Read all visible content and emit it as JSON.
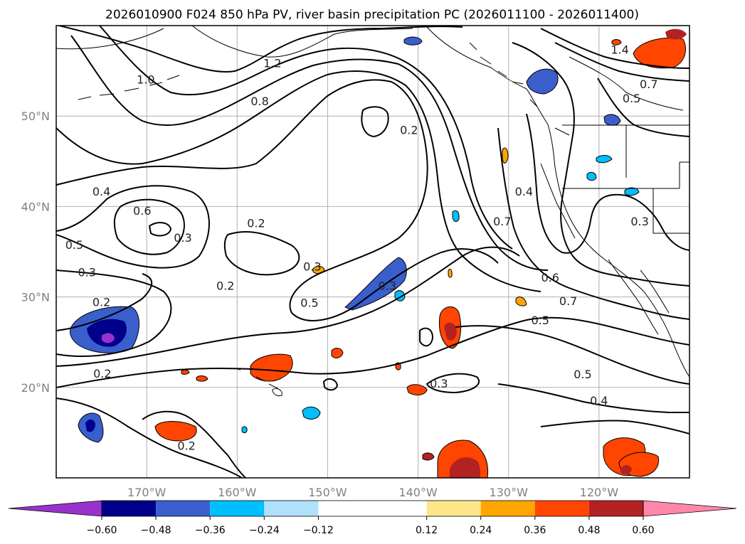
{
  "title": "2026010900 F024 850 hPa PV, river basin precipitation PC (2026011100 - 2026011400)",
  "map": {
    "lon_range": [
      -180,
      -110
    ],
    "lat_range": [
      10,
      60
    ],
    "lon_ticks": [
      {
        "value": -170,
        "label": "170°W"
      },
      {
        "value": -160,
        "label": "160°W"
      },
      {
        "value": -150,
        "label": "150°W"
      },
      {
        "value": -140,
        "label": "140°W"
      },
      {
        "value": -130,
        "label": "130°W"
      },
      {
        "value": -120,
        "label": "120°W"
      }
    ],
    "lat_ticks": [
      {
        "value": 20,
        "label": "20°N"
      },
      {
        "value": 30,
        "label": "30°N"
      },
      {
        "value": 40,
        "label": "40°N"
      },
      {
        "value": 50,
        "label": "50°N"
      }
    ],
    "contour_labels": [
      {
        "text": "1.4",
        "lon": -117.7,
        "lat": 56.9
      },
      {
        "text": "1.2",
        "lon": -156.1,
        "lat": 55.4
      },
      {
        "text": "1.0",
        "lon": -170.1,
        "lat": 53.6
      },
      {
        "text": "0.8",
        "lon": -157.5,
        "lat": 51.2
      },
      {
        "text": "0.7",
        "lon": -114.5,
        "lat": 53.1
      },
      {
        "text": "0.5",
        "lon": -116.4,
        "lat": 51.5
      },
      {
        "text": "0.2",
        "lon": -141.0,
        "lat": 48.0
      },
      {
        "text": "0.4",
        "lon": -175.0,
        "lat": 41.2
      },
      {
        "text": "0.6",
        "lon": -170.5,
        "lat": 39.1
      },
      {
        "text": "0.5",
        "lon": -178.0,
        "lat": 35.3
      },
      {
        "text": "0.3",
        "lon": -166.0,
        "lat": 36.1
      },
      {
        "text": "0.2",
        "lon": -157.9,
        "lat": 37.7
      },
      {
        "text": "0.4",
        "lon": -128.3,
        "lat": 41.2
      },
      {
        "text": "0.7",
        "lon": -130.7,
        "lat": 37.9
      },
      {
        "text": "0.3",
        "lon": -115.5,
        "lat": 37.9
      },
      {
        "text": "0.3",
        "lon": -176.6,
        "lat": 32.3
      },
      {
        "text": "0.2",
        "lon": -175.0,
        "lat": 29.0
      },
      {
        "text": "0.3",
        "lon": -151.7,
        "lat": 32.9
      },
      {
        "text": "0.2",
        "lon": -161.3,
        "lat": 30.8
      },
      {
        "text": "0.5",
        "lon": -152.0,
        "lat": 28.9
      },
      {
        "text": "0.3",
        "lon": -143.4,
        "lat": 30.8
      },
      {
        "text": "0.6",
        "lon": -125.4,
        "lat": 31.7
      },
      {
        "text": "0.7",
        "lon": -123.4,
        "lat": 29.1
      },
      {
        "text": "0.5",
        "lon": -126.5,
        "lat": 27.0
      },
      {
        "text": "0.2",
        "lon": -174.9,
        "lat": 21.1
      },
      {
        "text": "0.3",
        "lon": -137.7,
        "lat": 20.0
      },
      {
        "text": "0.5",
        "lon": -121.8,
        "lat": 21.0
      },
      {
        "text": "0.4",
        "lon": -120.0,
        "lat": 18.1
      },
      {
        "text": "0.2",
        "lon": -165.6,
        "lat": 13.1
      }
    ]
  },
  "colorbar": {
    "tick_values": [
      -0.6,
      -0.48,
      -0.36,
      -0.24,
      -0.12,
      0.12,
      0.24,
      0.36,
      0.48,
      0.6
    ],
    "tick_labels": [
      "−0.60",
      "−0.48",
      "−0.36",
      "−0.24",
      "−0.12",
      "0.12",
      "0.24",
      "0.36",
      "0.48",
      "0.60"
    ],
    "under_color": "#9932cc",
    "over_color": "#ff88aa",
    "bin_colors": [
      "#00008b",
      "#3a5fcd",
      "#00bfff",
      "#b0e0fa",
      "#ffffff",
      "#fde68a",
      "#ffa500",
      "#ff4500",
      "#b22222"
    ]
  },
  "colors": {
    "grid": "#b0b0b0",
    "contour": "#000000",
    "axis_text": "#808080"
  }
}
